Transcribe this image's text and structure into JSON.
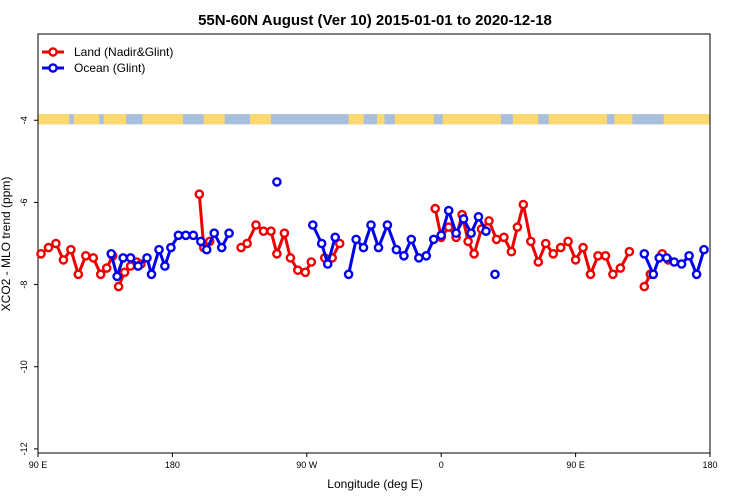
{
  "chart_data": {
    "type": "line",
    "title": "55N-60N August (Ver 10)   2015-01-01 to 2020-12-18",
    "xlabel": "Longitude (deg E)",
    "ylabel": "XCO2 - MLO trend (ppm)",
    "xlim": [
      90,
      540
    ],
    "ylim": [
      -12.1,
      -1.9
    ],
    "x_ticks": [
      {
        "value": 90,
        "label": "90 E"
      },
      {
        "value": 180,
        "label": "180"
      },
      {
        "value": 270,
        "label": "90 W"
      },
      {
        "value": 360,
        "label": "0"
      },
      {
        "value": 450,
        "label": "90 E"
      },
      {
        "value": 540,
        "label": "180"
      }
    ],
    "y_ticks": [
      {
        "value": -4,
        "label": "-4"
      },
      {
        "value": -6,
        "label": "-6"
      },
      {
        "value": -8,
        "label": "-8"
      },
      {
        "value": -10,
        "label": "-10"
      },
      {
        "value": -12,
        "label": "-12"
      }
    ],
    "legend_position": "top-left",
    "grid": false,
    "land_band": {
      "y_from": -3.85,
      "y_to": -4.1,
      "land_color": "#ffd86e",
      "ocean_color": "#a9bfdc"
    },
    "series": [
      {
        "name": "Land (Nadir&Glint)",
        "color": "#ee0000",
        "segments": [
          [
            [
              92,
              -7.25
            ],
            [
              97,
              -7.1
            ],
            [
              102,
              -7.0
            ],
            [
              107,
              -7.4
            ],
            [
              112,
              -7.15
            ],
            [
              117,
              -7.75
            ],
            [
              122,
              -7.3
            ],
            [
              127,
              -7.35
            ],
            [
              132,
              -7.75
            ],
            [
              136,
              -7.6
            ],
            [
              140,
              -7.3
            ]
          ],
          [
            [
              144,
              -8.05
            ],
            [
              148,
              -7.7
            ],
            [
              152,
              -7.55
            ],
            [
              156,
              -7.45
            ],
            [
              159,
              -7.5
            ]
          ],
          [
            [
              198,
              -5.8
            ],
            [
              201,
              -7.1
            ],
            [
              205,
              -6.95
            ]
          ],
          [
            [
              226,
              -7.1
            ],
            [
              230,
              -7.0
            ],
            [
              236,
              -6.55
            ],
            [
              241,
              -6.7
            ],
            [
              246,
              -6.7
            ],
            [
              250,
              -7.25
            ],
            [
              255,
              -6.75
            ],
            [
              259,
              -7.35
            ],
            [
              264,
              -7.65
            ],
            [
              269,
              -7.7
            ],
            [
              273,
              -7.45
            ]
          ],
          [
            [
              282,
              -7.35
            ],
            [
              287,
              -7.35
            ],
            [
              292,
              -7.0
            ]
          ],
          [
            [
              356,
              -6.15
            ],
            [
              360,
              -6.85
            ],
            [
              365,
              -6.6
            ],
            [
              370,
              -6.85
            ],
            [
              374,
              -6.3
            ],
            [
              378,
              -6.95
            ],
            [
              382,
              -7.25
            ],
            [
              387,
              -6.65
            ],
            [
              392,
              -6.45
            ],
            [
              397,
              -6.9
            ],
            [
              402,
              -6.85
            ],
            [
              407,
              -7.2
            ],
            [
              411,
              -6.6
            ],
            [
              415,
              -6.05
            ],
            [
              420,
              -6.95
            ],
            [
              425,
              -7.45
            ],
            [
              430,
              -7.0
            ],
            [
              435,
              -7.25
            ],
            [
              440,
              -7.1
            ],
            [
              445,
              -6.95
            ],
            [
              450,
              -7.4
            ],
            [
              455,
              -7.1
            ],
            [
              460,
              -7.75
            ],
            [
              465,
              -7.3
            ],
            [
              470,
              -7.3
            ],
            [
              475,
              -7.75
            ],
            [
              480,
              -7.6
            ],
            [
              486,
              -7.2
            ]
          ],
          [
            [
              496,
              -8.05
            ],
            [
              500,
              -7.75
            ]
          ],
          [
            [
              508,
              -7.25
            ],
            [
              512,
              -7.4
            ]
          ]
        ]
      },
      {
        "name": "Ocean (Glint)",
        "color": "#0000ee",
        "segments": [
          [
            [
              139,
              -7.25
            ],
            [
              143,
              -7.8
            ],
            [
              147,
              -7.35
            ],
            [
              152,
              -7.35
            ],
            [
              157,
              -7.55
            ],
            [
              163,
              -7.35
            ],
            [
              166,
              -7.75
            ],
            [
              171,
              -7.15
            ],
            [
              175,
              -7.55
            ],
            [
              179,
              -7.1
            ],
            [
              184,
              -6.8
            ],
            [
              189,
              -6.8
            ],
            [
              194,
              -6.8
            ],
            [
              199,
              -6.95
            ],
            [
              203,
              -7.15
            ],
            [
              208,
              -6.75
            ],
            [
              213,
              -7.1
            ],
            [
              218,
              -6.75
            ]
          ],
          [
            [
              274,
              -6.55
            ],
            [
              280,
              -7.0
            ],
            [
              284,
              -7.5
            ],
            [
              289,
              -6.85
            ]
          ],
          [
            [
              298,
              -7.75
            ],
            [
              303,
              -6.9
            ],
            [
              308,
              -7.1
            ],
            [
              313,
              -6.55
            ],
            [
              318,
              -7.1
            ],
            [
              324,
              -6.55
            ],
            [
              330,
              -7.15
            ],
            [
              335,
              -7.3
            ],
            [
              340,
              -6.9
            ],
            [
              345,
              -7.35
            ],
            [
              350,
              -7.3
            ],
            [
              355,
              -6.9
            ],
            [
              360,
              -6.8
            ],
            [
              365,
              -6.2
            ],
            [
              370,
              -6.75
            ],
            [
              375,
              -6.4
            ],
            [
              380,
              -6.75
            ],
            [
              385,
              -6.35
            ],
            [
              390,
              -6.7
            ]
          ],
          [
            [
              496,
              -7.25
            ],
            [
              502,
              -7.75
            ],
            [
              506,
              -7.35
            ],
            [
              511,
              -7.35
            ],
            [
              516,
              -7.45
            ],
            [
              521,
              -7.5
            ],
            [
              526,
              -7.3
            ],
            [
              531,
              -7.75
            ],
            [
              536,
              -7.15
            ]
          ]
        ],
        "isolated_points": [
          [
            250,
            -5.5
          ],
          [
            396,
            -7.75
          ]
        ]
      }
    ]
  }
}
